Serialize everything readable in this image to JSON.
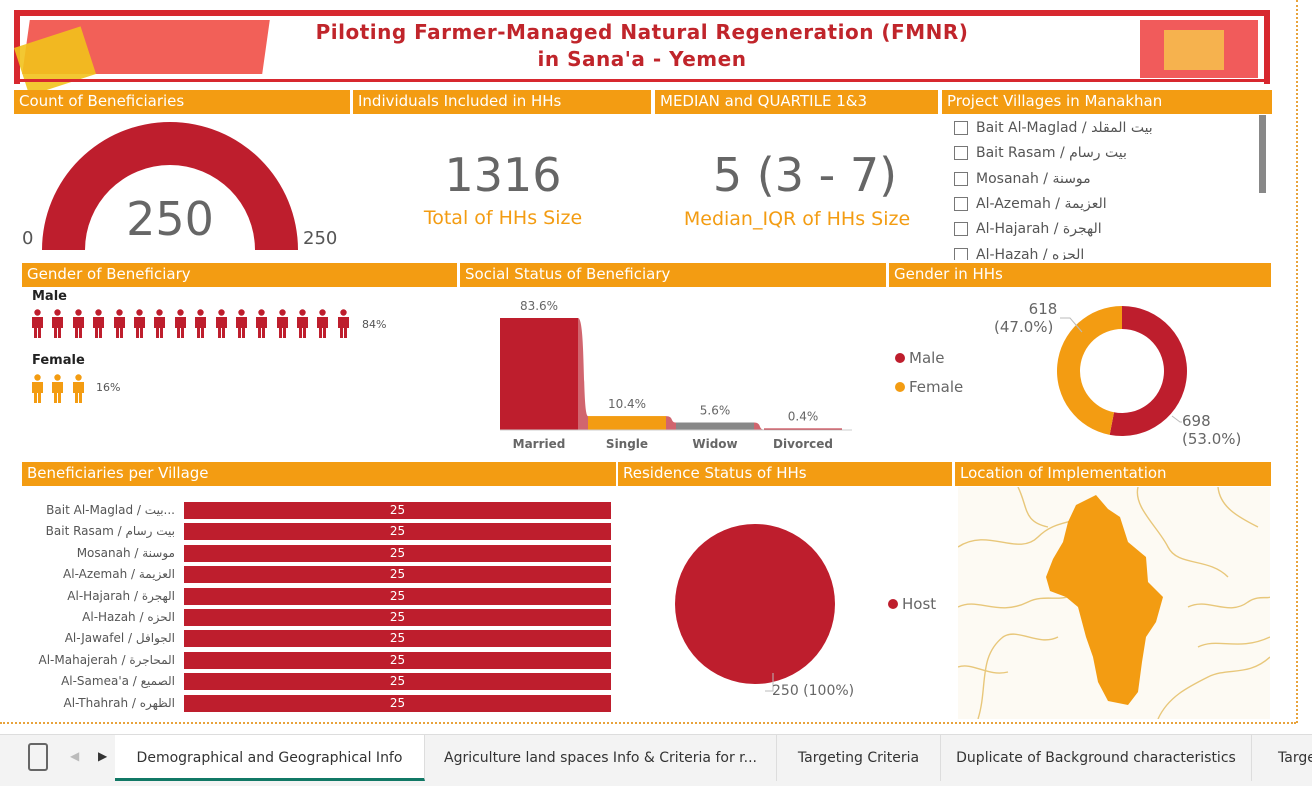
{
  "header": {
    "title_line1": "Piloting Farmer-Managed Natural Regeneration (FMNR)",
    "title_line2": "in Sana'a - Yemen"
  },
  "count_beneficiaries": {
    "title": "Count of Beneficiaries",
    "value": "250",
    "min": "0",
    "max": "250",
    "fraction": 1.0
  },
  "individuals": {
    "title": "Individuals Included in HHs",
    "value": "1316",
    "label": "Total of HHs Size"
  },
  "median": {
    "title": "MEDIAN and QUARTILE 1&3",
    "value": "5 (3 - 7)",
    "label": "Median_IQR of HHs Size"
  },
  "villages_filter": {
    "title": "Project Villages in Manakhan",
    "items": [
      "Bait Al-Maglad / بيت المقلد",
      "Bait Rasam / بيت رسام",
      "Mosanah / موسنة",
      "Al-Azemah / العزيمة",
      "Al-Hajarah / الهجرة",
      "Al-Hazah / الحزه"
    ]
  },
  "gender_beneficiary": {
    "title": "Gender of Beneficiary",
    "male_label": "Male",
    "male_pct": "84%",
    "male_icons": 16,
    "female_label": "Female",
    "female_pct": "16%",
    "female_icons": 3
  },
  "social_status": {
    "title": "Social Status of Beneficiary"
  },
  "gender_hhs": {
    "title": "Gender in HHs",
    "legend_male": "Male",
    "legend_female": "Female",
    "female_value": "618",
    "female_pct": "(47.0%)",
    "male_value": "698",
    "male_pct": "(53.0%)"
  },
  "beneficiaries_village": {
    "title": "Beneficiaries per Village"
  },
  "residence": {
    "title": "Residence Status of HHs",
    "legend": "Host",
    "label": "250 (100%)"
  },
  "location": {
    "title": "Location of Implementation"
  },
  "tabs": [
    "Demographical and Geographical Info",
    "Agriculture land spaces Info & Criteria for r...",
    "Targeting Criteria",
    "Duplicate of Background characteristics",
    "Targe"
  ],
  "colors": {
    "accent": "#f39c12",
    "red": "#be1e2d",
    "grey": "#888888"
  },
  "chart_data": [
    {
      "type": "bar",
      "title": "Social Status of Beneficiary",
      "categories": [
        "Married",
        "Single",
        "Widow",
        "Divorced"
      ],
      "values": [
        83.6,
        10.4,
        5.6,
        0.4
      ],
      "value_labels": [
        "83.6%",
        "10.4%",
        "5.6%",
        "0.4%"
      ],
      "colors": [
        "#be1e2d",
        "#f39c12",
        "#888888",
        "#be1e2d"
      ],
      "ylim": [
        0,
        100
      ]
    },
    {
      "type": "bar",
      "title": "Beneficiaries per Village",
      "orientation": "horizontal",
      "categories": [
        "Bait Al-Maglad / بيت...",
        "Bait Rasam / بيت رسام",
        "Mosanah / موسنة",
        "Al-Azemah / العزيمة",
        "Al-Hajarah / الهجرة",
        "Al-Hazah / الحزه",
        "Al-Jawafel / الجوافل",
        "Al-Mahajerah / المحاجرة",
        "Al-Samea'a / الصميع",
        "Al-Thahrah / الظهره"
      ],
      "values": [
        25,
        25,
        25,
        25,
        25,
        25,
        25,
        25,
        25,
        25
      ],
      "value_labels": [
        "25",
        "25",
        "25",
        "25",
        "25",
        "25",
        "25",
        "25",
        "25",
        "25"
      ]
    },
    {
      "type": "pie",
      "title": "Gender in HHs",
      "categories": [
        "Male",
        "Female"
      ],
      "values": [
        698,
        618
      ]
    },
    {
      "type": "pie",
      "title": "Residence Status of HHs",
      "categories": [
        "Host"
      ],
      "values": [
        250
      ]
    }
  ]
}
